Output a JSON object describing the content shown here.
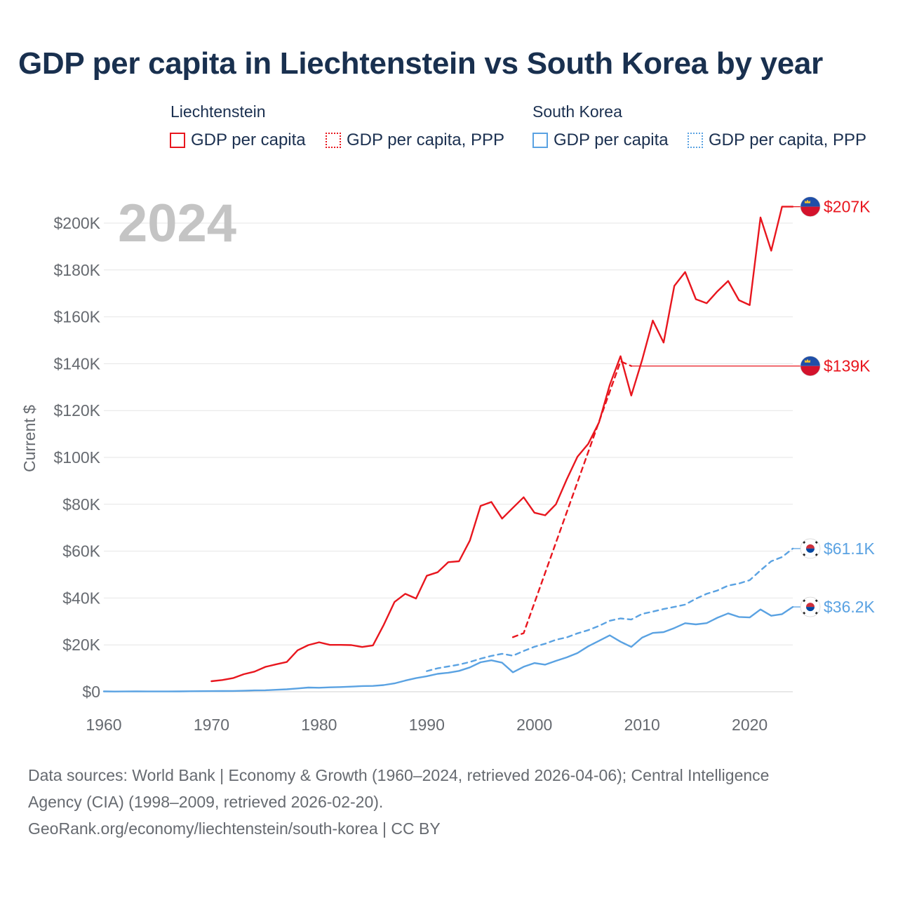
{
  "title": "GDP per capita in Liechtenstein vs South Korea by year",
  "legend": {
    "groups": [
      {
        "label": "Liechtenstein",
        "items": [
          "GDP per capita",
          "GDP per capita, PPP"
        ]
      },
      {
        "label": "South Korea",
        "items": [
          "GDP per capita",
          "GDP per capita, PPP"
        ]
      }
    ]
  },
  "colors": {
    "liechtenstein": "#e8161e",
    "south_korea": "#5aa2e2",
    "grid": "#e6e6e6",
    "axis_text": "#666a70",
    "year_watermark": "#c4c4c4"
  },
  "sources": {
    "line1": "Data sources: World Bank | Economy & Growth (1960–2024, retrieved 2026-04-06); Central Intelligence",
    "line2": "Agency (CIA) (1998–2009, retrieved 2026-02-20).",
    "line3": "GeoRank.org/economy/liechtenstein/south-korea | CC BY"
  },
  "chart_data": {
    "type": "line",
    "year_label": "2024",
    "ylabel": "Current $",
    "xlim": [
      1960,
      2024
    ],
    "ylim": [
      0,
      200000
    ],
    "x_ticks": [
      1960,
      1970,
      1980,
      1990,
      2000,
      2010,
      2020
    ],
    "x_tick_labels": [
      "1960",
      "1970",
      "1980",
      "1990",
      "2000",
      "2010",
      "2020"
    ],
    "y_ticks": [
      0,
      20000,
      40000,
      60000,
      80000,
      100000,
      120000,
      140000,
      160000,
      180000,
      200000
    ],
    "y_tick_labels": [
      "$0",
      "$20K",
      "$40K",
      "$60K",
      "$80K",
      "$100K",
      "$120K",
      "$140K",
      "$160K",
      "$180K",
      "$200K"
    ],
    "series": [
      {
        "name": "Liechtenstein GDP per capita",
        "country": "Liechtenstein",
        "style": "solid",
        "color": "#e8161e",
        "end_label": "$207K",
        "end_value": 207000,
        "points": [
          [
            1970,
            4500
          ],
          [
            1971,
            5000
          ],
          [
            1972,
            5800
          ],
          [
            1973,
            7500
          ],
          [
            1974,
            8600
          ],
          [
            1975,
            10600
          ],
          [
            1976,
            11700
          ],
          [
            1977,
            12700
          ],
          [
            1978,
            17700
          ],
          [
            1979,
            19900
          ],
          [
            1980,
            21100
          ],
          [
            1981,
            20000
          ],
          [
            1982,
            20000
          ],
          [
            1983,
            19900
          ],
          [
            1984,
            19100
          ],
          [
            1985,
            19800
          ],
          [
            1986,
            28500
          ],
          [
            1987,
            38300
          ],
          [
            1988,
            41800
          ],
          [
            1989,
            39800
          ],
          [
            1990,
            49500
          ],
          [
            1991,
            51000
          ],
          [
            1992,
            55300
          ],
          [
            1993,
            55700
          ],
          [
            1994,
            64500
          ],
          [
            1995,
            79300
          ],
          [
            1996,
            81000
          ],
          [
            1997,
            73900
          ],
          [
            1998,
            78500
          ],
          [
            1999,
            83000
          ],
          [
            2000,
            76400
          ],
          [
            2001,
            75300
          ],
          [
            2002,
            80000
          ],
          [
            2003,
            90600
          ],
          [
            2004,
            100300
          ],
          [
            2005,
            105800
          ],
          [
            2006,
            114900
          ],
          [
            2007,
            131000
          ],
          [
            2008,
            143200
          ],
          [
            2009,
            126400
          ],
          [
            2010,
            141500
          ],
          [
            2011,
            158400
          ],
          [
            2012,
            149000
          ],
          [
            2013,
            173200
          ],
          [
            2014,
            179100
          ],
          [
            2015,
            167500
          ],
          [
            2016,
            165800
          ],
          [
            2017,
            170900
          ],
          [
            2018,
            175300
          ],
          [
            2019,
            167100
          ],
          [
            2020,
            165000
          ],
          [
            2021,
            202400
          ],
          [
            2022,
            188200
          ],
          [
            2023,
            207000
          ],
          [
            2024,
            207000
          ]
        ]
      },
      {
        "name": "Liechtenstein GDP per capita, PPP",
        "country": "Liechtenstein",
        "style": "dashed",
        "color": "#e8161e",
        "end_label": "$139K",
        "end_value": 139000,
        "points": [
          [
            1998,
            23300
          ],
          [
            1999,
            25000
          ],
          [
            2008,
            141000
          ],
          [
            2009,
            139000
          ]
        ]
      },
      {
        "name": "South Korea GDP per capita",
        "country": "South Korea",
        "style": "solid",
        "color": "#5aa2e2",
        "end_label": "$36.2K",
        "end_value": 36200,
        "points": [
          [
            1960,
            158
          ],
          [
            1961,
            94
          ],
          [
            1962,
            106
          ],
          [
            1963,
            146
          ],
          [
            1964,
            124
          ],
          [
            1965,
            109
          ],
          [
            1966,
            133
          ],
          [
            1967,
            161
          ],
          [
            1968,
            198
          ],
          [
            1969,
            243
          ],
          [
            1970,
            279
          ],
          [
            1971,
            301
          ],
          [
            1972,
            323
          ],
          [
            1973,
            407
          ],
          [
            1974,
            563
          ],
          [
            1975,
            618
          ],
          [
            1976,
            834
          ],
          [
            1977,
            1055
          ],
          [
            1978,
            1405
          ],
          [
            1979,
            1784
          ],
          [
            1980,
            1715
          ],
          [
            1981,
            1883
          ],
          [
            1982,
            1993
          ],
          [
            1983,
            2199
          ],
          [
            1984,
            2413
          ],
          [
            1985,
            2482
          ],
          [
            1986,
            2835
          ],
          [
            1987,
            3555
          ],
          [
            1988,
            4749
          ],
          [
            1989,
            5817
          ],
          [
            1990,
            6610
          ],
          [
            1991,
            7637
          ],
          [
            1992,
            8127
          ],
          [
            1993,
            8885
          ],
          [
            1994,
            10385
          ],
          [
            1995,
            12565
          ],
          [
            1996,
            13403
          ],
          [
            1997,
            12398
          ],
          [
            1998,
            8282
          ],
          [
            1999,
            10672
          ],
          [
            2000,
            12257
          ],
          [
            2001,
            11561
          ],
          [
            2002,
            13165
          ],
          [
            2003,
            14673
          ],
          [
            2004,
            16496
          ],
          [
            2005,
            19403
          ],
          [
            2006,
            21743
          ],
          [
            2007,
            24086
          ],
          [
            2008,
            21350
          ],
          [
            2009,
            19144
          ],
          [
            2010,
            23079
          ],
          [
            2011,
            25096
          ],
          [
            2012,
            25459
          ],
          [
            2013,
            27180
          ],
          [
            2014,
            29249
          ],
          [
            2015,
            28732
          ],
          [
            2016,
            29289
          ],
          [
            2017,
            31600
          ],
          [
            2018,
            33447
          ],
          [
            2019,
            31902
          ],
          [
            2020,
            31721
          ],
          [
            2021,
            35126
          ],
          [
            2022,
            32423
          ],
          [
            2023,
            33121
          ],
          [
            2024,
            36200
          ]
        ]
      },
      {
        "name": "South Korea GDP per capita, PPP",
        "country": "South Korea",
        "style": "dashed",
        "color": "#5aa2e2",
        "end_label": "$61.1K",
        "end_value": 61100,
        "points": [
          [
            1990,
            8800
          ],
          [
            1991,
            10000
          ],
          [
            1992,
            10800
          ],
          [
            1993,
            11600
          ],
          [
            1994,
            12700
          ],
          [
            1995,
            14100
          ],
          [
            1996,
            15300
          ],
          [
            1997,
            16200
          ],
          [
            1998,
            15400
          ],
          [
            1999,
            17400
          ],
          [
            2000,
            19200
          ],
          [
            2001,
            20500
          ],
          [
            2002,
            22200
          ],
          [
            2003,
            23200
          ],
          [
            2004,
            24900
          ],
          [
            2005,
            26300
          ],
          [
            2006,
            28100
          ],
          [
            2007,
            30300
          ],
          [
            2008,
            31300
          ],
          [
            2009,
            30800
          ],
          [
            2010,
            33200
          ],
          [
            2011,
            34200
          ],
          [
            2012,
            35300
          ],
          [
            2013,
            36200
          ],
          [
            2014,
            37200
          ],
          [
            2015,
            39700
          ],
          [
            2016,
            41800
          ],
          [
            2017,
            43200
          ],
          [
            2018,
            45300
          ],
          [
            2019,
            46200
          ],
          [
            2020,
            47600
          ],
          [
            2021,
            51800
          ],
          [
            2022,
            55700
          ],
          [
            2023,
            57500
          ],
          [
            2024,
            61100
          ]
        ]
      }
    ]
  }
}
